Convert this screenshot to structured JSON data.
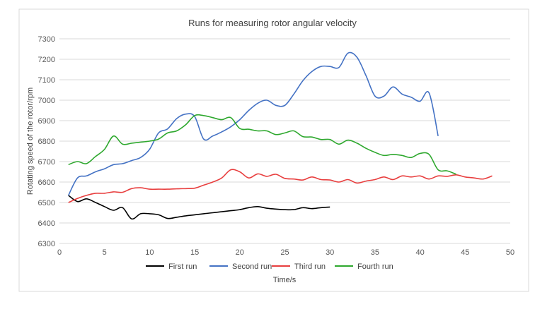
{
  "chart_data": {
    "type": "line",
    "title": "Runs for measuring rotor angular velocity",
    "xlabel": "Time/s",
    "ylabel": "Rotating speed of the rotor/rpm",
    "xlim": [
      0,
      50
    ],
    "ylim": [
      6300,
      7300
    ],
    "x_ticks": [
      0,
      5,
      10,
      15,
      20,
      25,
      30,
      35,
      40,
      45,
      50
    ],
    "y_ticks": [
      6300,
      6400,
      6500,
      6600,
      6700,
      6800,
      6900,
      7000,
      7100,
      7200,
      7300
    ],
    "grid": true,
    "legend_position": "bottom",
    "series": [
      {
        "name": "First run",
        "color": "#000000",
        "points": [
          [
            1,
            6535
          ],
          [
            2,
            6505
          ],
          [
            3,
            6518
          ],
          [
            4,
            6500
          ],
          [
            5,
            6480
          ],
          [
            6,
            6462
          ],
          [
            7,
            6475
          ],
          [
            8,
            6420
          ],
          [
            9,
            6445
          ],
          [
            10,
            6445
          ],
          [
            11,
            6440
          ],
          [
            12,
            6422
          ],
          [
            13,
            6428
          ],
          [
            14,
            6435
          ],
          [
            15,
            6440
          ],
          [
            16,
            6445
          ],
          [
            17,
            6450
          ],
          [
            18,
            6455
          ],
          [
            19,
            6460
          ],
          [
            20,
            6465
          ],
          [
            21,
            6475
          ],
          [
            22,
            6480
          ],
          [
            23,
            6472
          ],
          [
            24,
            6468
          ],
          [
            25,
            6465
          ],
          [
            26,
            6465
          ],
          [
            27,
            6475
          ],
          [
            28,
            6470
          ],
          [
            29,
            6475
          ],
          [
            30,
            6478
          ]
        ]
      },
      {
        "name": "Second run",
        "color": "#4472C4",
        "points": [
          [
            1,
            6535
          ],
          [
            2,
            6620
          ],
          [
            3,
            6630
          ],
          [
            4,
            6650
          ],
          [
            5,
            6665
          ],
          [
            6,
            6685
          ],
          [
            7,
            6690
          ],
          [
            8,
            6705
          ],
          [
            9,
            6720
          ],
          [
            10,
            6760
          ],
          [
            11,
            6840
          ],
          [
            12,
            6860
          ],
          [
            13,
            6910
          ],
          [
            14,
            6932
          ],
          [
            15,
            6920
          ],
          [
            16,
            6810
          ],
          [
            17,
            6825
          ],
          [
            18,
            6845
          ],
          [
            19,
            6870
          ],
          [
            20,
            6905
          ],
          [
            21,
            6950
          ],
          [
            22,
            6985
          ],
          [
            23,
            7000
          ],
          [
            24,
            6975
          ],
          [
            25,
            6975
          ],
          [
            26,
            7030
          ],
          [
            27,
            7095
          ],
          [
            28,
            7140
          ],
          [
            29,
            7165
          ],
          [
            30,
            7165
          ],
          [
            31,
            7160
          ],
          [
            32,
            7230
          ],
          [
            33,
            7210
          ],
          [
            34,
            7120
          ],
          [
            35,
            7020
          ],
          [
            36,
            7020
          ],
          [
            37,
            7065
          ],
          [
            38,
            7030
          ],
          [
            39,
            7015
          ],
          [
            40,
            6995
          ],
          [
            41,
            7035
          ],
          [
            42,
            6825
          ]
        ]
      },
      {
        "name": "Third run",
        "color": "#E83E3E",
        "points": [
          [
            1,
            6500
          ],
          [
            2,
            6520
          ],
          [
            3,
            6535
          ],
          [
            4,
            6545
          ],
          [
            5,
            6545
          ],
          [
            6,
            6552
          ],
          [
            7,
            6550
          ],
          [
            8,
            6568
          ],
          [
            9,
            6572
          ],
          [
            10,
            6565
          ],
          [
            11,
            6565
          ],
          [
            12,
            6565
          ],
          [
            13,
            6567
          ],
          [
            14,
            6568
          ],
          [
            15,
            6570
          ],
          [
            16,
            6585
          ],
          [
            17,
            6600
          ],
          [
            18,
            6620
          ],
          [
            19,
            6660
          ],
          [
            20,
            6650
          ],
          [
            21,
            6620
          ],
          [
            22,
            6640
          ],
          [
            23,
            6628
          ],
          [
            24,
            6638
          ],
          [
            25,
            6618
          ],
          [
            26,
            6615
          ],
          [
            27,
            6610
          ],
          [
            28,
            6625
          ],
          [
            29,
            6612
          ],
          [
            30,
            6610
          ],
          [
            31,
            6600
          ],
          [
            32,
            6612
          ],
          [
            33,
            6595
          ],
          [
            34,
            6605
          ],
          [
            35,
            6612
          ],
          [
            36,
            6625
          ],
          [
            37,
            6612
          ],
          [
            38,
            6630
          ],
          [
            39,
            6625
          ],
          [
            40,
            6630
          ],
          [
            41,
            6615
          ],
          [
            42,
            6630
          ],
          [
            43,
            6628
          ],
          [
            44,
            6635
          ],
          [
            45,
            6625
          ],
          [
            46,
            6620
          ],
          [
            47,
            6615
          ],
          [
            48,
            6630
          ]
        ]
      },
      {
        "name": "Fourth run",
        "color": "#2EA82E",
        "points": [
          [
            1,
            6685
          ],
          [
            2,
            6700
          ],
          [
            3,
            6690
          ],
          [
            4,
            6725
          ],
          [
            5,
            6760
          ],
          [
            6,
            6825
          ],
          [
            7,
            6785
          ],
          [
            8,
            6790
          ],
          [
            9,
            6795
          ],
          [
            10,
            6800
          ],
          [
            11,
            6810
          ],
          [
            12,
            6840
          ],
          [
            13,
            6850
          ],
          [
            14,
            6880
          ],
          [
            15,
            6925
          ],
          [
            16,
            6925
          ],
          [
            17,
            6915
          ],
          [
            18,
            6905
          ],
          [
            19,
            6915
          ],
          [
            20,
            6862
          ],
          [
            21,
            6858
          ],
          [
            22,
            6850
          ],
          [
            23,
            6850
          ],
          [
            24,
            6832
          ],
          [
            25,
            6840
          ],
          [
            26,
            6850
          ],
          [
            27,
            6822
          ],
          [
            28,
            6820
          ],
          [
            29,
            6808
          ],
          [
            30,
            6808
          ],
          [
            31,
            6785
          ],
          [
            32,
            6805
          ],
          [
            33,
            6790
          ],
          [
            34,
            6765
          ],
          [
            35,
            6745
          ],
          [
            36,
            6730
          ],
          [
            37,
            6735
          ],
          [
            38,
            6730
          ],
          [
            39,
            6720
          ],
          [
            40,
            6740
          ],
          [
            41,
            6735
          ],
          [
            42,
            6660
          ],
          [
            43,
            6655
          ],
          [
            44,
            6638
          ]
        ]
      }
    ]
  }
}
